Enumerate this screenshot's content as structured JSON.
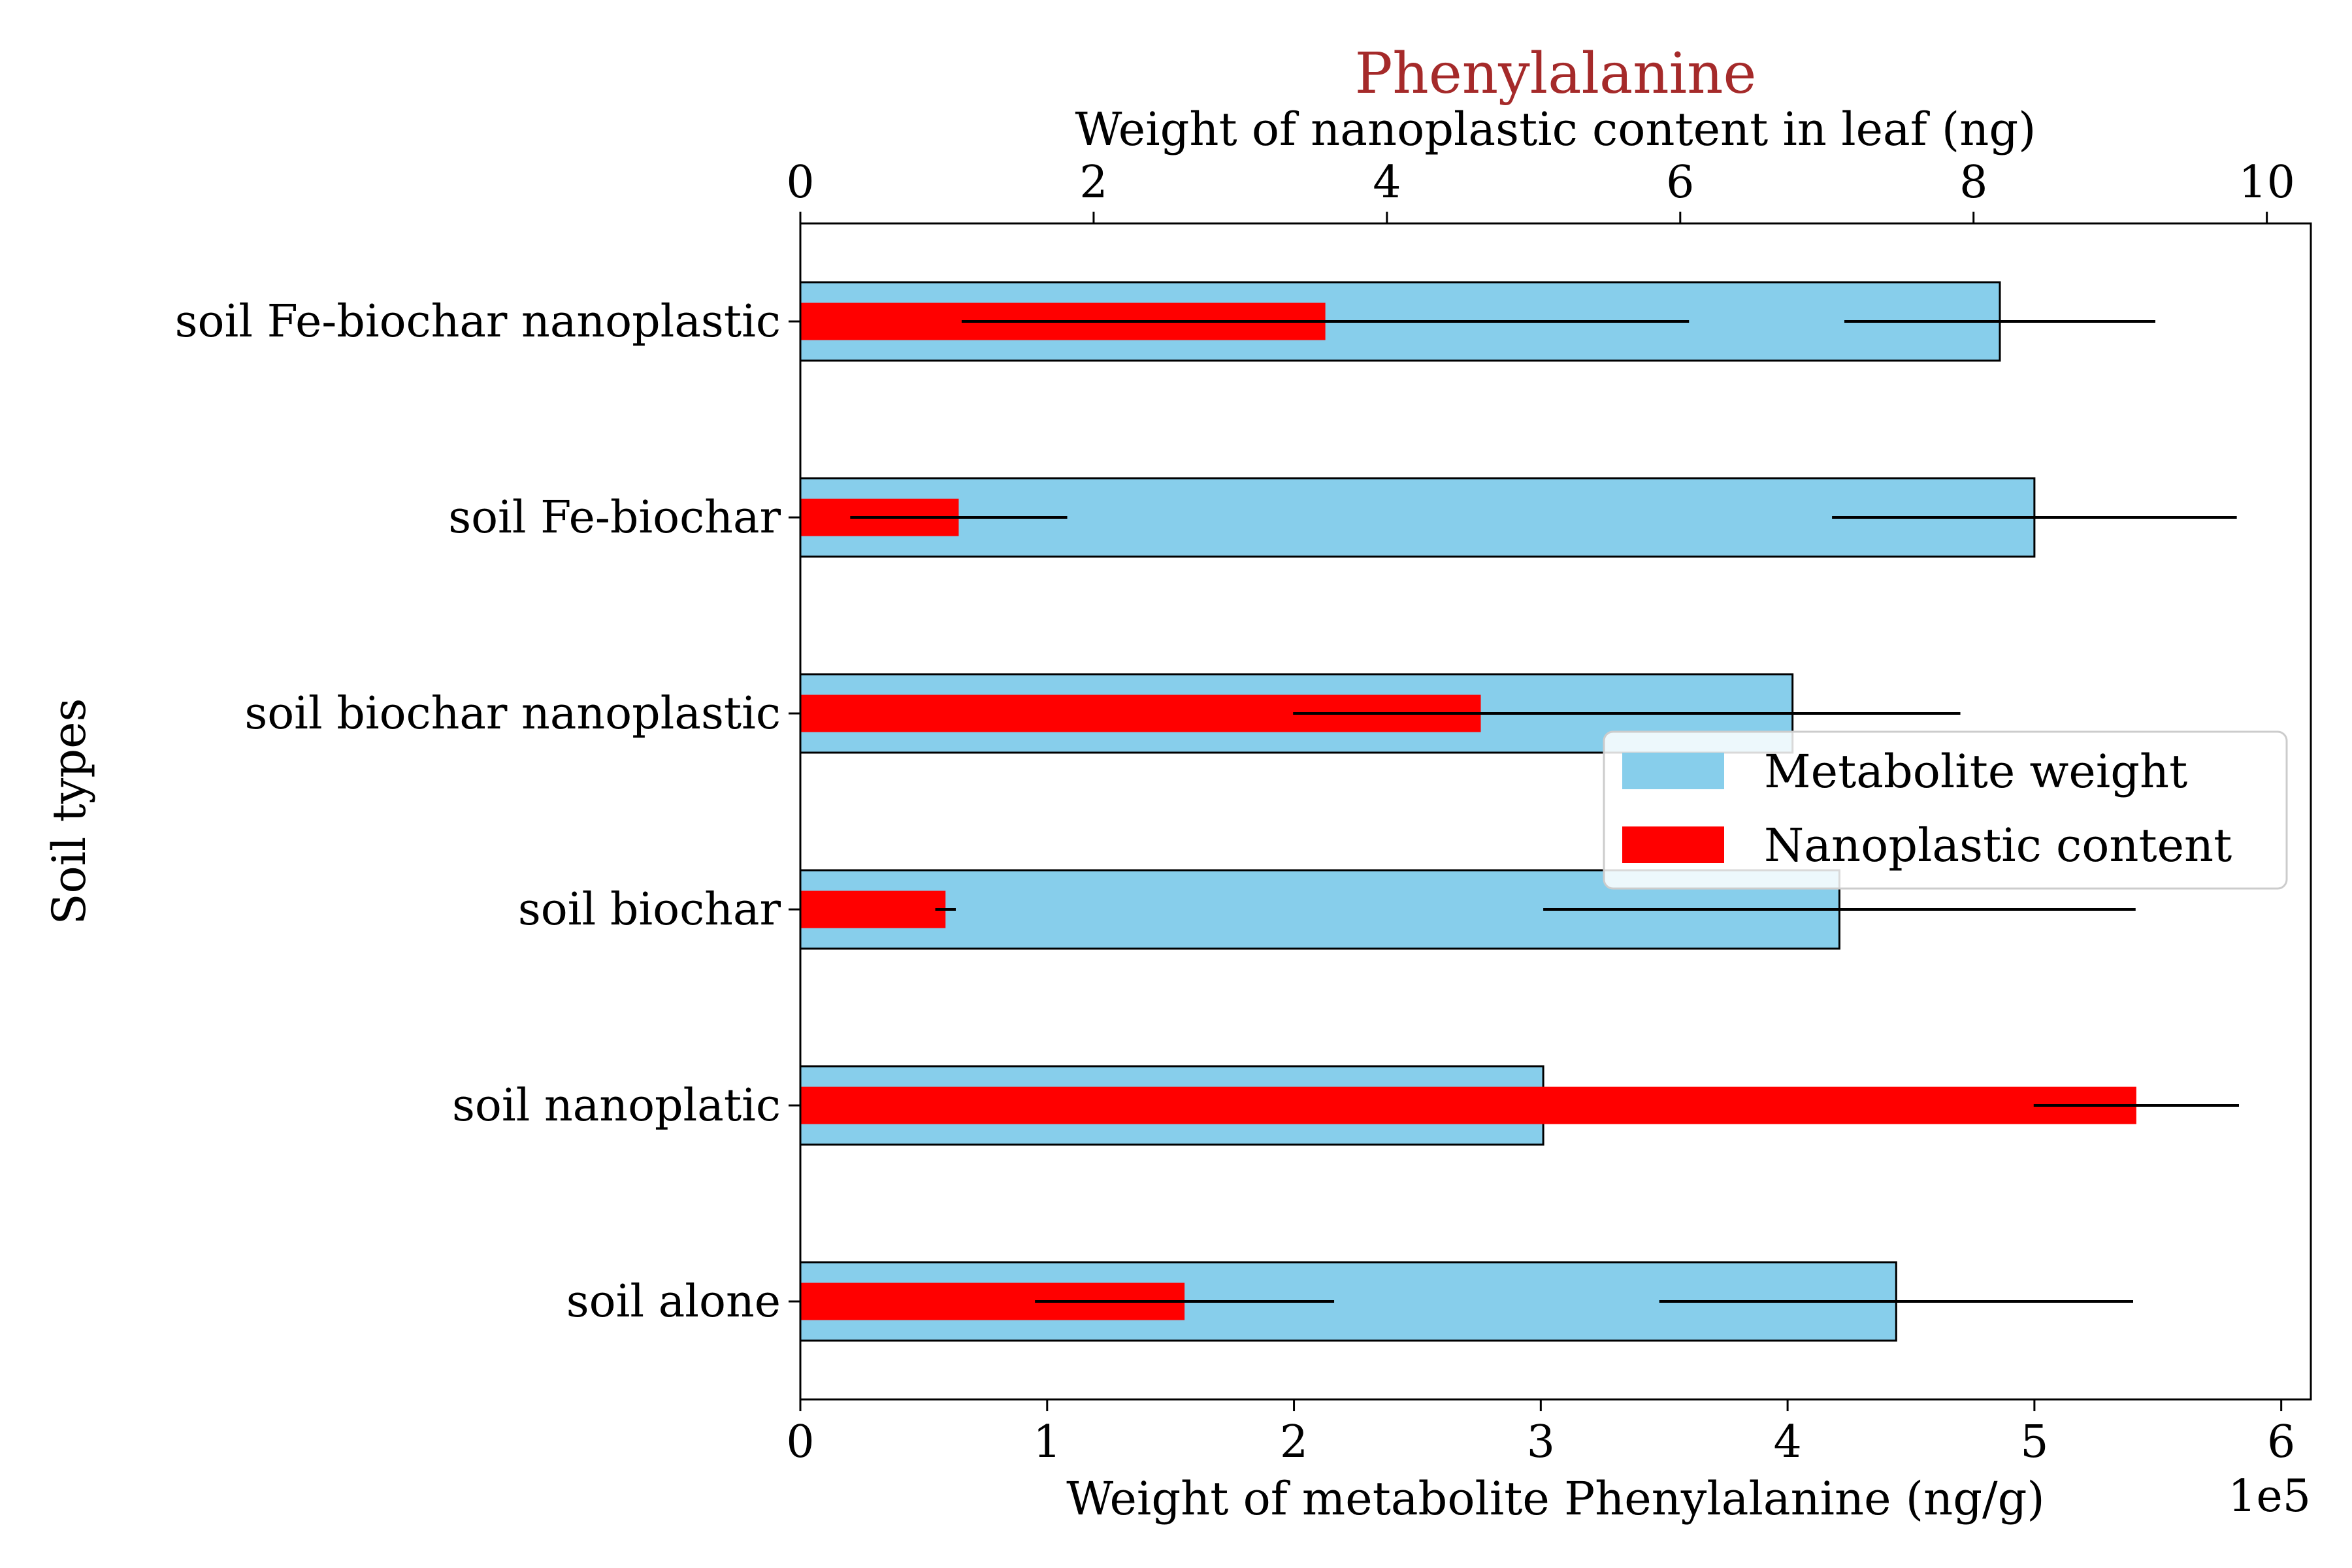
{
  "chart_data": {
    "type": "bar",
    "orientation": "horizontal",
    "title": "Phenylalanine",
    "title_color": "#a52a2a",
    "categories": [
      "soil alone",
      "soil nanoplatic",
      "soil biochar",
      "soil biochar nanoplastic",
      "soil Fe-biochar",
      "soil Fe-biochar nanoplastic"
    ],
    "ylabel": "Soil types",
    "bottom_axis": {
      "label": "Weight of metabolite Phenylalanine (ng/g)",
      "offset_label": "1e5",
      "scale": 100000,
      "lim": [
        0,
        6.12
      ],
      "ticks": [
        0,
        1,
        2,
        3,
        4,
        5,
        6
      ],
      "tick_labels": [
        "0",
        "1",
        "2",
        "3",
        "4",
        "5",
        "6"
      ]
    },
    "top_axis": {
      "label": "Weight of nanoplastic content in leaf (ng)",
      "lim": [
        0,
        10.3
      ],
      "ticks": [
        0,
        2,
        4,
        6,
        8,
        10
      ],
      "tick_labels": [
        "0",
        "2",
        "4",
        "6",
        "8",
        "10"
      ]
    },
    "series": [
      {
        "name": "Metabolite weight",
        "color": "#87ceeb",
        "axis": "bottom",
        "values": [
          4.44,
          3.01,
          4.21,
          4.02,
          5.0,
          4.86
        ],
        "errors": [
          0.96,
          0.0,
          1.2,
          0.68,
          0.82,
          0.63
        ]
      },
      {
        "name": "Nanoplastic content",
        "color": "#ff0000",
        "axis": "top",
        "values": [
          2.62,
          9.11,
          0.99,
          4.64,
          1.08,
          3.58
        ],
        "errors": [
          1.02,
          0.7,
          0.07,
          1.28,
          0.74,
          2.48
        ]
      }
    ],
    "legend": {
      "placement": "center-right",
      "entries": [
        "Metabolite weight",
        "Nanoplastic content"
      ]
    },
    "grid": false
  }
}
